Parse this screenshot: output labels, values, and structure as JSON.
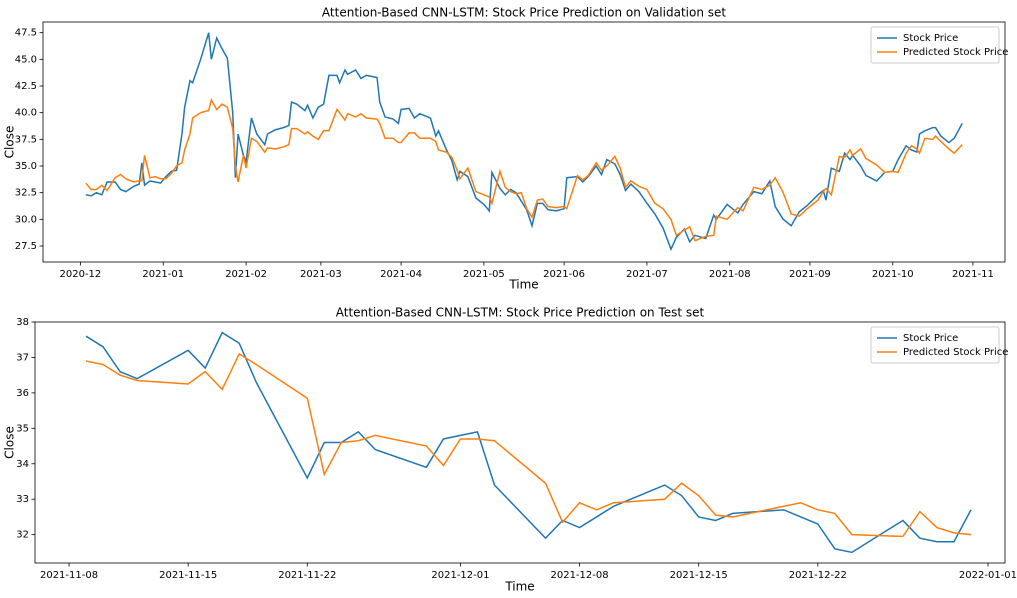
{
  "chart_data": [
    {
      "type": "line",
      "title": "Attention-Based CNN-LSTM: Stock Price Prediction on Validation set",
      "xlabel": "Time",
      "ylabel": "Close",
      "legend": "upper right",
      "grid": false,
      "x": [
        2,
        4,
        6,
        8,
        10,
        13,
        15,
        17,
        20,
        22,
        23,
        24,
        26,
        28,
        30,
        32,
        34,
        36,
        38,
        39,
        41,
        42,
        45,
        48,
        49,
        51,
        53,
        55,
        57,
        58,
        59,
        61,
        62,
        64,
        66,
        69,
        70,
        73,
        76,
        78,
        79,
        81,
        84,
        85,
        87,
        89,
        91,
        93,
        96,
        97,
        99,
        100,
        103,
        105,
        107,
        111,
        112,
        114,
        117,
        119,
        120,
        123,
        125,
        127,
        131,
        133,
        134,
        137,
        139,
        141,
        142,
        145,
        148,
        151,
        153,
        154,
        157,
        159,
        161,
        163,
        165,
        167,
        169,
        171,
        173,
        175,
        178,
        181,
        182,
        186,
        188,
        190,
        193,
        195,
        197,
        200,
        202,
        204,
        206,
        209,
        212,
        215,
        218,
        221,
        223,
        226,
        228,
        230,
        234,
        237,
        238,
        242,
        246,
        248,
        252,
        255,
        258,
        260,
        263,
        266,
        269,
        272,
        276,
        278,
        279,
        281,
        284,
        286,
        288,
        289,
        292,
        294,
        298,
        301,
        304,
        306,
        309,
        311,
        313,
        314,
        316,
        319,
        320,
        322,
        325,
        327,
        330
      ],
      "series": [
        {
          "name": "Stock Price",
          "color": "#1f77b4",
          "values": [
            32.3,
            32.2,
            32.5,
            32.3,
            33.5,
            33.5,
            32.8,
            32.6,
            33.1,
            33.3,
            35.3,
            33.2,
            33.6,
            33.5,
            33.4,
            34.0,
            34.5,
            34.6,
            38.0,
            40.5,
            43.0,
            42.8,
            45.0,
            47.5,
            45.0,
            47.0,
            46.0,
            45.1,
            40.0,
            33.9,
            38.0,
            36.0,
            35.4,
            39.5,
            38.0,
            37.0,
            38.0,
            38.4,
            38.6,
            38.8,
            41.0,
            40.8,
            40.2,
            40.7,
            39.5,
            40.5,
            40.8,
            43.5,
            43.5,
            42.8,
            44.0,
            43.6,
            44.0,
            43.2,
            43.5,
            43.3,
            41.0,
            39.6,
            39.4,
            39.0,
            40.3,
            40.4,
            39.5,
            39.9,
            39.5,
            37.8,
            38.3,
            36.5,
            35.5,
            33.7,
            34.5,
            34.0,
            32.0,
            31.4,
            30.8,
            34.4,
            32.9,
            32.3,
            32.8,
            32.5,
            31.7,
            30.9,
            29.4,
            31.5,
            31.5,
            30.9,
            30.8,
            31.0,
            33.9,
            34.0,
            33.5,
            34.0,
            35.0,
            34.2,
            35.6,
            35.2,
            34.2,
            32.7,
            33.3,
            32.6,
            31.5,
            30.5,
            29.2,
            27.2,
            28.3,
            29.1,
            27.9,
            28.5,
            28.2,
            30.4,
            30.0,
            31.4,
            30.6,
            31.4,
            32.6,
            32.4,
            33.6,
            31.2,
            30.0,
            29.4,
            30.7,
            31.3,
            32.3,
            32.7,
            31.8,
            34.8,
            34.5,
            36.2,
            35.6,
            36.0,
            35.0,
            34.1,
            33.6,
            34.4,
            34.5,
            35.6,
            36.9,
            36.5,
            36.3,
            38.0,
            38.3,
            38.6,
            38.6,
            37.8,
            37.2,
            37.6,
            39.0
          ]
        },
        {
          "name": "Predicted Stock Price",
          "color": "#ff7f0e",
          "values": [
            33.4,
            32.8,
            32.8,
            33.2,
            32.7,
            33.9,
            34.2,
            33.8,
            33.5,
            33.6,
            33.6,
            36.0,
            33.9,
            34.0,
            33.8,
            33.8,
            34.3,
            35.0,
            35.3,
            36.5,
            38.0,
            39.5,
            40.0,
            40.2,
            41.2,
            40.3,
            40.8,
            40.5,
            38.5,
            35.0,
            33.5,
            36.0,
            34.8,
            37.6,
            37.3,
            36.3,
            36.7,
            36.6,
            36.8,
            37.0,
            38.5,
            38.5,
            38.0,
            38.2,
            37.8,
            37.5,
            38.3,
            38.3,
            40.3,
            40.0,
            39.3,
            39.9,
            39.6,
            39.9,
            39.5,
            39.4,
            39.0,
            37.6,
            37.6,
            37.2,
            37.2,
            38.1,
            38.1,
            37.6,
            37.6,
            37.3,
            36.5,
            36.3,
            35.8,
            34.6,
            33.8,
            34.8,
            32.6,
            32.3,
            32.1,
            31.5,
            34.5,
            33.0,
            32.6,
            32.4,
            32.5,
            31.0,
            30.2,
            31.8,
            31.9,
            31.2,
            31.1,
            31.2,
            31.0,
            34.1,
            33.7,
            34.1,
            35.3,
            34.6,
            35.0,
            35.9,
            34.8,
            33.0,
            33.6,
            33.1,
            32.8,
            31.5,
            31.0,
            30.0,
            28.5,
            29.0,
            29.3,
            28.0,
            28.4,
            28.5,
            30.3,
            30.0,
            31.1,
            30.8,
            33.0,
            32.8,
            33.2,
            33.9,
            32.5,
            30.5,
            30.3,
            31.0,
            31.8,
            32.6,
            32.9,
            32.3,
            35.9,
            35.8,
            36.5,
            36.0,
            36.6,
            35.7,
            35.1,
            34.4,
            34.5,
            34.4,
            36.2,
            36.9,
            36.6,
            36.2,
            37.6,
            37.5,
            37.8,
            37.3,
            36.6,
            36.2,
            37.0
          ]
        }
      ],
      "xlim": [
        -14,
        346
      ],
      "xticks": [
        {
          "value": 0,
          "label": "2020-12"
        },
        {
          "value": 31,
          "label": "2021-01"
        },
        {
          "value": 62,
          "label": "2021-02"
        },
        {
          "value": 90,
          "label": "2021-03"
        },
        {
          "value": 120,
          "label": "2021-04"
        },
        {
          "value": 151,
          "label": "2021-05"
        },
        {
          "value": 181,
          "label": "2021-06"
        },
        {
          "value": 212,
          "label": "2021-07"
        },
        {
          "value": 243,
          "label": "2021-08"
        },
        {
          "value": 273,
          "label": "2021-09"
        },
        {
          "value": 304,
          "label": "2021-10"
        },
        {
          "value": 334,
          "label": "2021-11"
        }
      ],
      "ylim": [
        26.0,
        48.5
      ],
      "yticks": [
        27.5,
        {
          "value": 30,
          "label": "30.0"
        },
        32.5,
        {
          "value": 35,
          "label": "35.0"
        },
        37.5,
        {
          "value": 40,
          "label": "40.0"
        },
        42.5,
        {
          "value": 45,
          "label": "45.0"
        },
        47.5
      ]
    },
    {
      "type": "line",
      "title": "Attention-Based CNN-LSTM: Stock Price Prediction on Test set",
      "xlabel": "Time",
      "ylabel": "Close",
      "legend": "upper right",
      "grid": false,
      "x": [
        "2021-11-09",
        "2021-11-10",
        "2021-11-11",
        "2021-11-12",
        "2021-11-15",
        "2021-11-16",
        "2021-11-17",
        "2021-11-18",
        "2021-11-19",
        "2021-11-22",
        "2021-11-23",
        "2021-11-24",
        "2021-11-25",
        "2021-11-26",
        "2021-11-29",
        "2021-11-30",
        "2021-12-01",
        "2021-12-02",
        "2021-12-03",
        "2021-12-06",
        "2021-12-07",
        "2021-12-08",
        "2021-12-09",
        "2021-12-10",
        "2021-12-13",
        "2021-12-14",
        "2021-12-15",
        "2021-12-16",
        "2021-12-17",
        "2021-12-20",
        "2021-12-21",
        "2021-12-22",
        "2021-12-23",
        "2021-12-24",
        "2021-12-27",
        "2021-12-28",
        "2021-12-29",
        "2021-12-30",
        "2021-12-31"
      ],
      "series": [
        {
          "name": "Stock Price",
          "color": "#1f77b4",
          "values": [
            37.6,
            37.3,
            36.6,
            36.4,
            37.2,
            36.7,
            37.7,
            37.4,
            36.3,
            33.6,
            34.6,
            34.6,
            34.9,
            34.4,
            33.9,
            34.7,
            34.8,
            34.9,
            33.4,
            31.9,
            32.4,
            32.2,
            32.5,
            32.8,
            33.4,
            33.1,
            32.5,
            32.4,
            32.6,
            32.7,
            32.5,
            32.3,
            31.6,
            31.5,
            32.4,
            31.9,
            31.8,
            31.8,
            32.7
          ]
        },
        {
          "name": "Predicted Stock Price",
          "color": "#ff7f0e",
          "values": [
            36.9,
            36.8,
            36.5,
            36.35,
            36.25,
            36.6,
            36.1,
            37.1,
            36.8,
            35.85,
            33.7,
            34.6,
            34.65,
            34.8,
            34.5,
            33.95,
            34.7,
            34.7,
            34.65,
            33.45,
            32.35,
            32.9,
            32.7,
            32.9,
            33.0,
            33.45,
            33.1,
            32.55,
            32.5,
            32.8,
            32.9,
            32.7,
            32.6,
            32.0,
            31.95,
            32.65,
            32.2,
            32.05,
            32.0
          ]
        }
      ],
      "xlim": [
        "2021-11-06",
        "2022-01-02"
      ],
      "xticks": [
        "2021-11-08",
        "2021-11-15",
        "2021-11-22",
        "2021-12-01",
        "2021-12-08",
        "2021-12-15",
        "2021-12-22",
        "2022-01-01"
      ],
      "ylim": [
        31.2,
        38
      ],
      "yticks": [
        32,
        33,
        34,
        35,
        36,
        37,
        38
      ]
    }
  ]
}
